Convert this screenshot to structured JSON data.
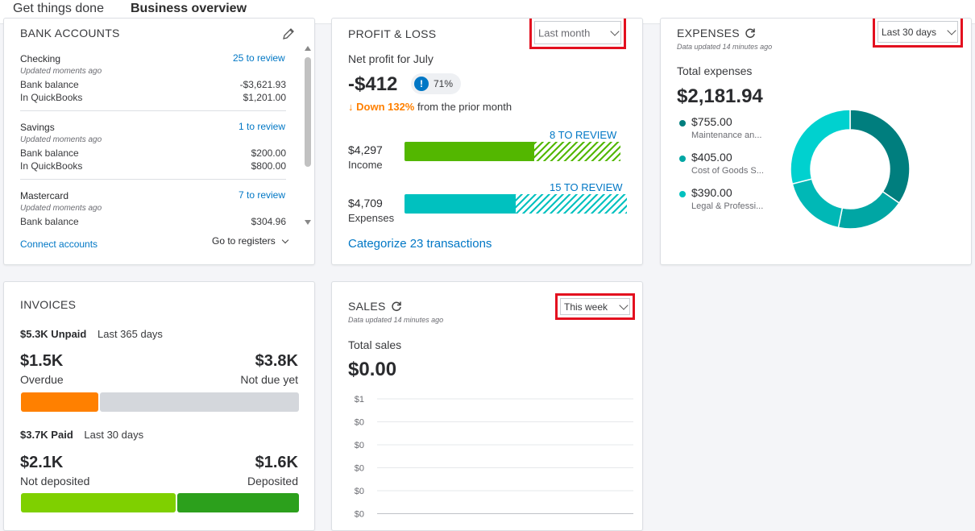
{
  "tabs": [
    "Get things done",
    "Business overview"
  ],
  "bank": {
    "title": "BANK ACCOUNTS",
    "accounts": [
      {
        "name": "Checking",
        "review": "25 to review",
        "updated": "Updated moments ago",
        "bank_label": "Bank balance",
        "bank_value": "-$3,621.93",
        "qb_label": "In QuickBooks",
        "qb_value": "$1,201.00"
      },
      {
        "name": "Savings",
        "review": "1 to review",
        "updated": "Updated moments ago",
        "bank_label": "Bank balance",
        "bank_value": "$200.00",
        "qb_label": "In QuickBooks",
        "qb_value": "$800.00"
      },
      {
        "name": "Mastercard",
        "review": "7 to review",
        "updated": "Updated moments ago",
        "bank_label": "Bank balance",
        "bank_value": "$304.96"
      }
    ],
    "connect": "Connect accounts",
    "registers": "Go to registers"
  },
  "pl": {
    "title": "PROFIT & LOSS",
    "period": "Last month",
    "net_label": "Net profit for July",
    "net_value": "-$412",
    "badge": "71%",
    "change_direction": "Down 132%",
    "change_rest": "from the prior month",
    "income": {
      "value": "$4,297",
      "label": "Income",
      "review": "8 TO REVIEW",
      "fill": 0.6
    },
    "expenses": {
      "value": "$4,709",
      "label": "Expenses",
      "review": "15 TO REVIEW",
      "fill": 0.5
    },
    "categorize": "Categorize 23 transactions",
    "colors": {
      "income": "#53b700",
      "expenses": "#00c1bf"
    }
  },
  "expenses": {
    "title": "EXPENSES",
    "updated": "Data updated 14 minutes ago",
    "period": "Last 30 days",
    "total_label": "Total expenses",
    "total": "$2,181.94",
    "items": [
      {
        "value": "$755.00",
        "label": "Maintenance an...",
        "color": "#007e7e"
      },
      {
        "value": "$405.00",
        "label": "Cost of Goods S...",
        "color": "#00a6a4"
      },
      {
        "value": "$390.00",
        "label": "Legal & Professi...",
        "color": "#00c1bf"
      }
    ],
    "donut": [
      {
        "value": 755,
        "color": "#007e7e"
      },
      {
        "value": 405,
        "color": "#00a6a4"
      },
      {
        "value": 390,
        "color": "#00b8b6"
      },
      {
        "value": 631.94,
        "color": "#00d1cf"
      }
    ]
  },
  "invoices": {
    "title": "INVOICES",
    "unpaid": "$5.3K Unpaid",
    "unpaid_period": "Last 365 days",
    "overdue_value": "$1.5K",
    "overdue_label": "Overdue",
    "notdue_value": "$3.8K",
    "notdue_label": "Not due yet",
    "unpaid_fraction": 0.28,
    "paid": "$3.7K Paid",
    "paid_period": "Last 30 days",
    "notdep_value": "$2.1K",
    "notdep_label": "Not deposited",
    "dep_value": "$1.6K",
    "dep_label": "Deposited",
    "paid_fraction": 0.56,
    "colors": {
      "overdue": "#ff8000",
      "notdue": "#d4d7dc",
      "notdep": "#7fd000",
      "dep": "#2ca01c"
    }
  },
  "sales": {
    "title": "SALES",
    "updated": "Data updated 14 minutes ago",
    "period": "This week",
    "total_label": "Total sales",
    "total": "$0.00",
    "chart_data": {
      "type": "line",
      "y_ticks": [
        "$1",
        "$0",
        "$0",
        "$0",
        "$0",
        "$0"
      ],
      "series": [],
      "grid": true
    }
  }
}
